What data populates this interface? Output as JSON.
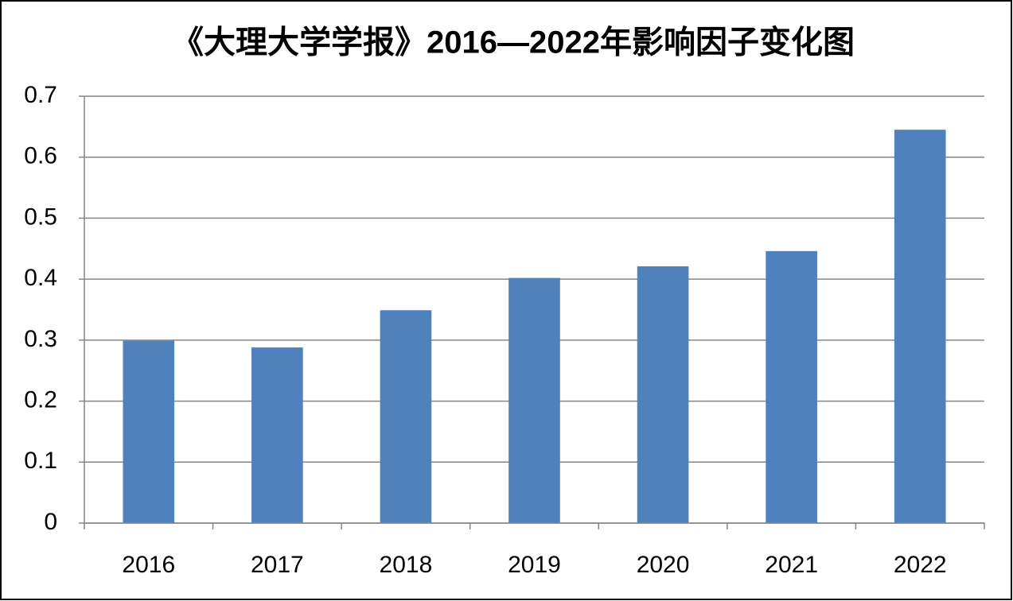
{
  "chart_data": {
    "type": "bar",
    "title": "《大理大学学报》2016—2022年影响因子变化图",
    "categories": [
      "2016",
      "2017",
      "2018",
      "2019",
      "2020",
      "2021",
      "2022"
    ],
    "values": [
      0.299,
      0.288,
      0.349,
      0.402,
      0.421,
      0.446,
      0.645
    ],
    "color": "#4f81bd",
    "ylim": [
      0,
      0.7
    ],
    "yticks": [
      0,
      0.1,
      0.2,
      0.3,
      0.4,
      0.5,
      0.6,
      0.7
    ],
    "grid": true
  }
}
